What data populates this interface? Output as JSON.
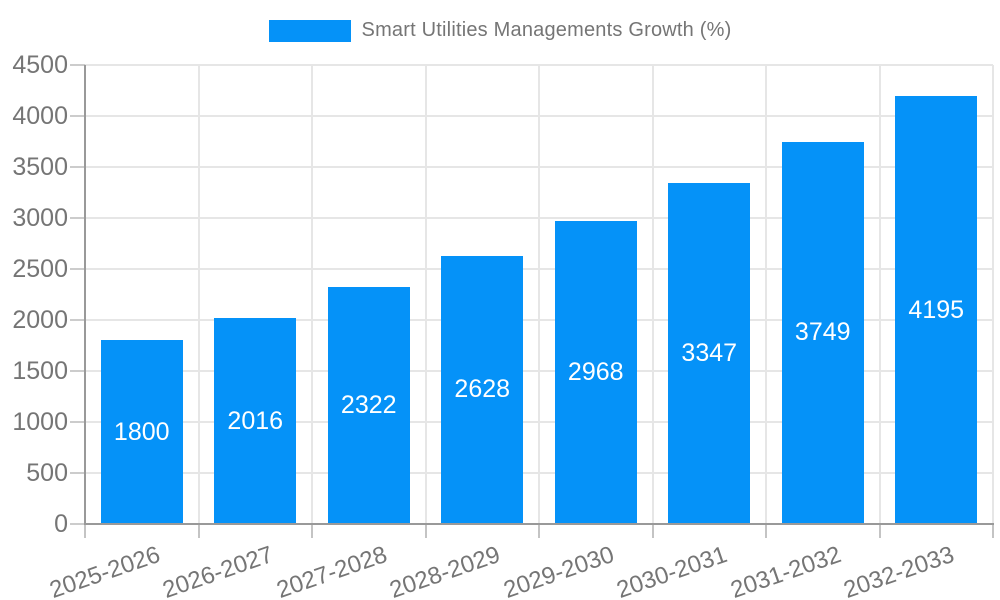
{
  "legend": {
    "series_label": "Smart Utilities Managements Growth (%)"
  },
  "chart_data": {
    "type": "bar",
    "title": "Smart Utilities Managements Growth (%)",
    "categories": [
      "2025-2026",
      "2026-2027",
      "2027-2028",
      "2028-2029",
      "2029-2030",
      "2030-2031",
      "2031-2032",
      "2032-2033"
    ],
    "values": [
      1800,
      2016,
      2322,
      2628,
      2968,
      3347,
      3749,
      4195
    ],
    "xlabel": "",
    "ylabel": "",
    "ylim": [
      0,
      4500
    ],
    "yticks": [
      0,
      500,
      1000,
      1500,
      2000,
      2500,
      3000,
      3500,
      4000,
      4500
    ],
    "grid": true,
    "legend_position": "top-center",
    "value_labels": "inside-center-white",
    "x_label_rotation_deg": -19,
    "colors": {
      "bar": "#0592f8",
      "value_label": "#ffffff",
      "grid": "#e6e6e6",
      "axis": "#999999",
      "tick": "#c4c4c4",
      "text": "#757575",
      "background": "#ffffff"
    }
  }
}
